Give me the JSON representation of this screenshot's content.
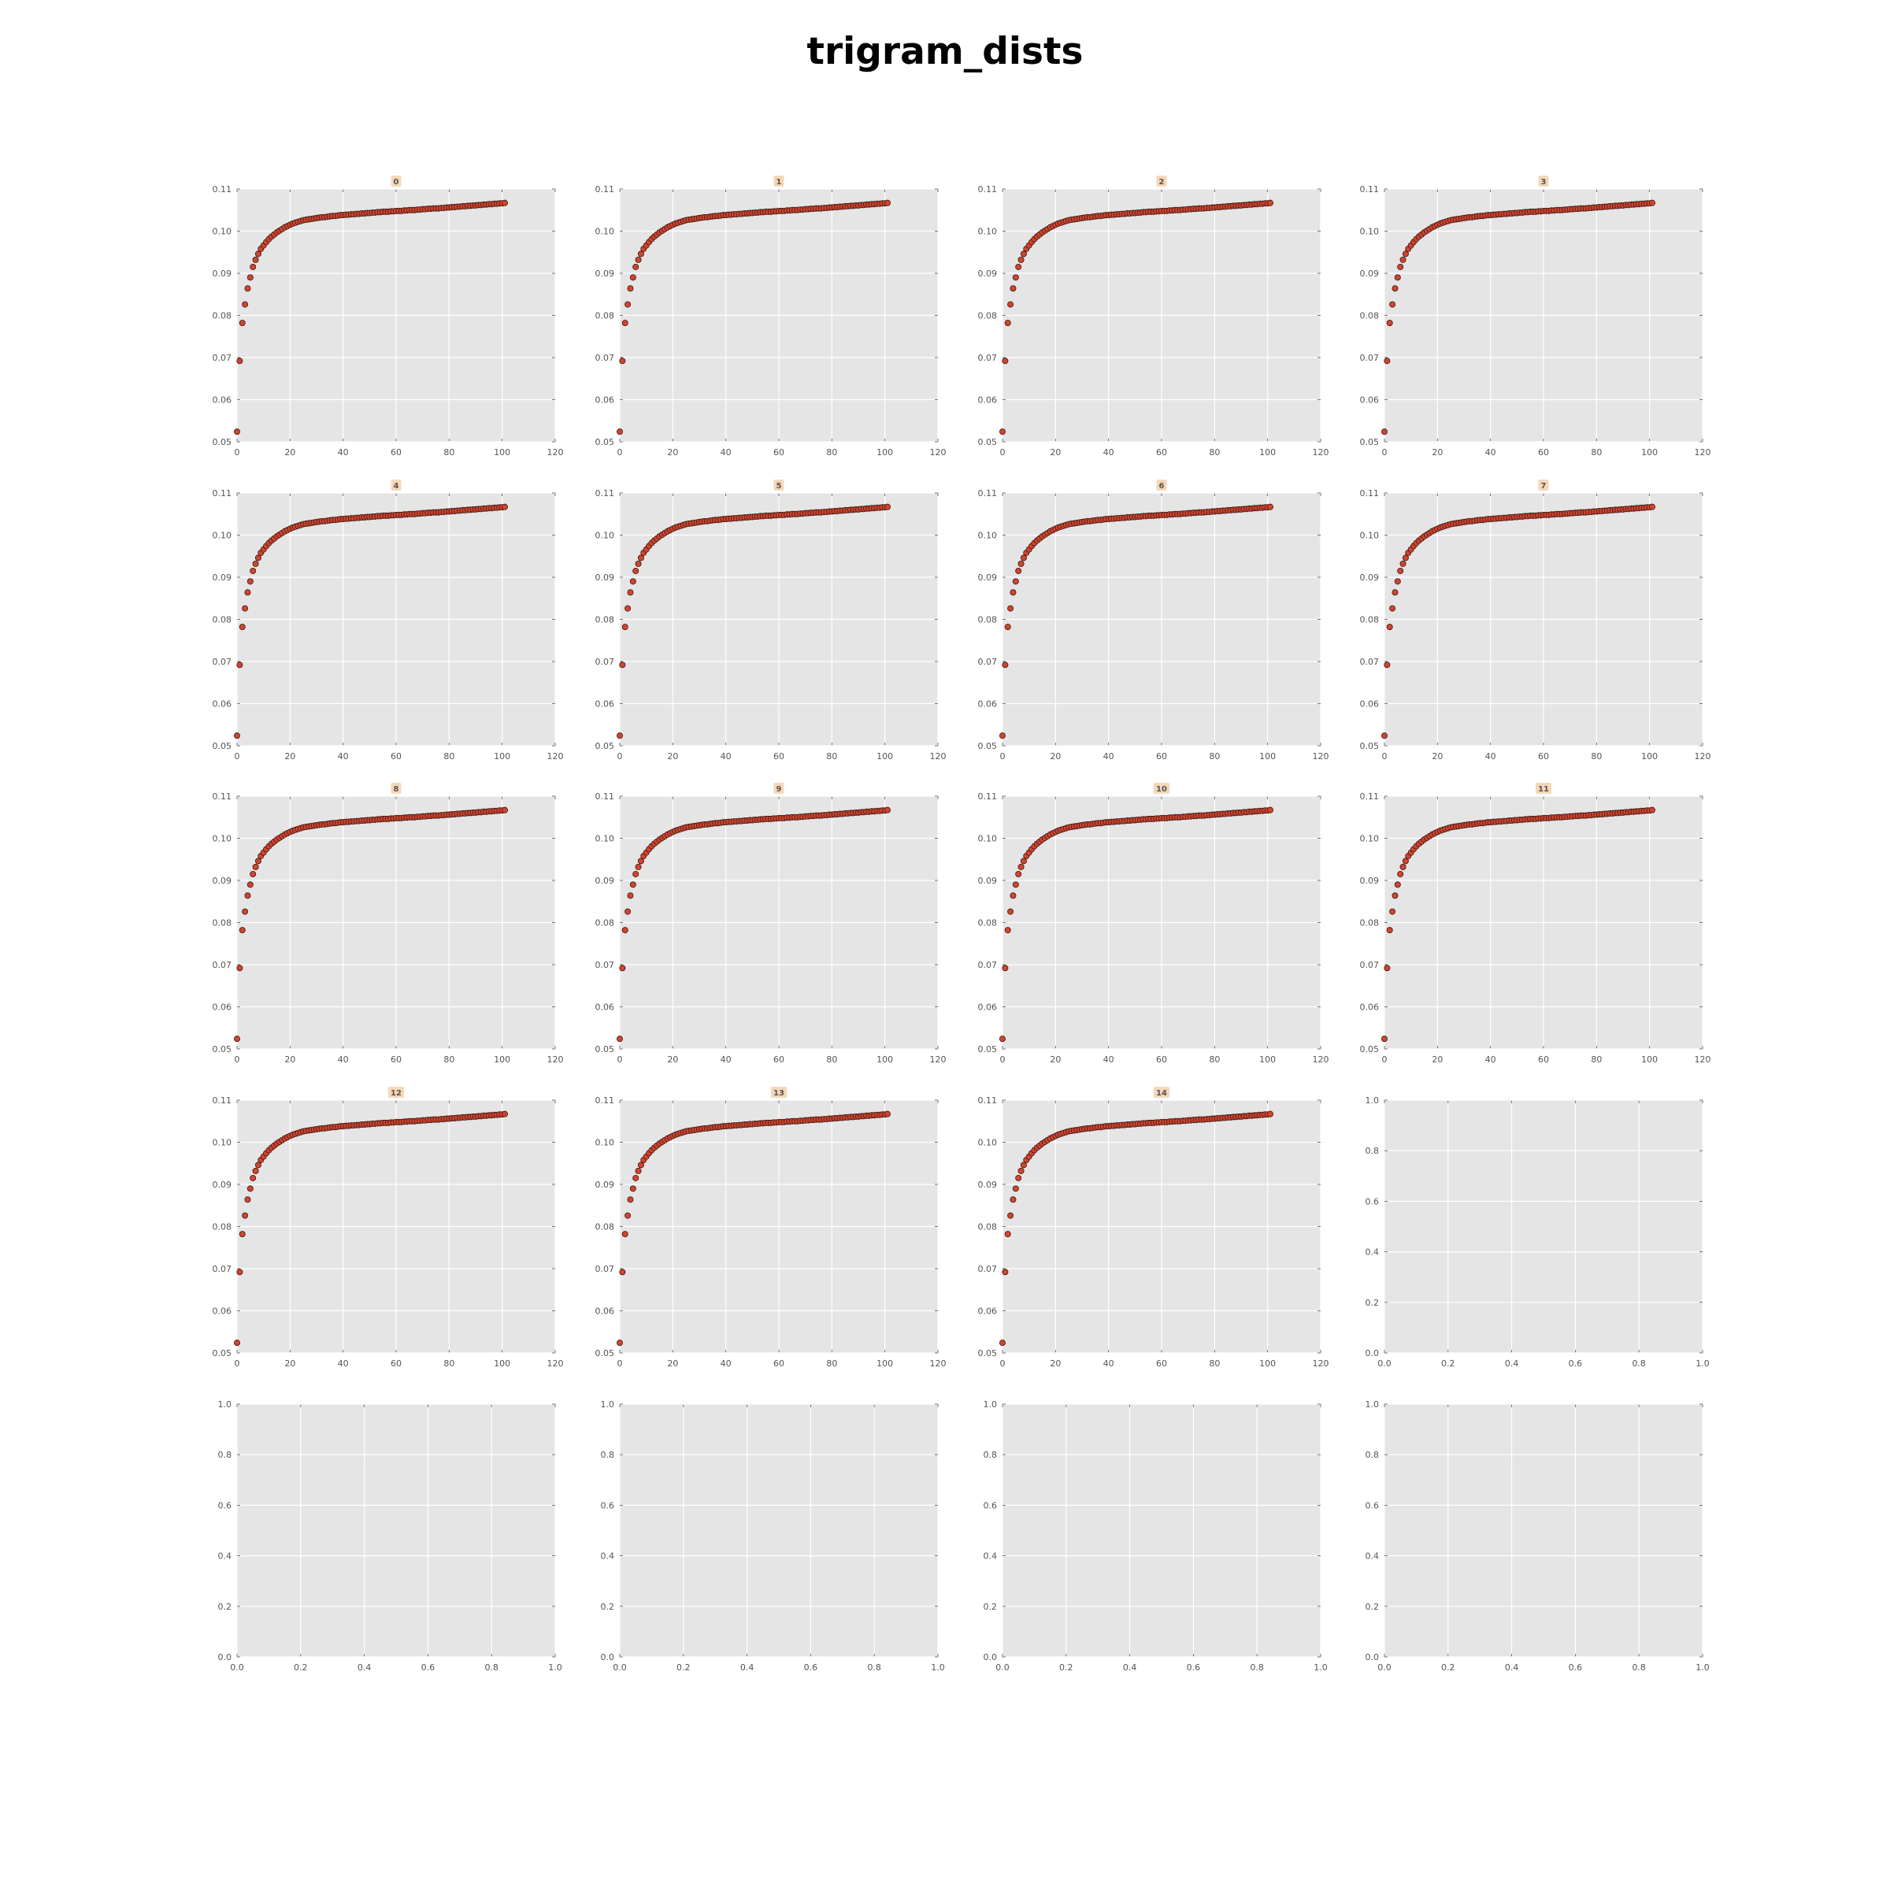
{
  "figure": {
    "title": "trigram_dists"
  },
  "style": {
    "panel_background": "#e5e5e5",
    "grid_color": "#ffffff",
    "marker_fill": "#d1442f",
    "marker_edge": "#3a1a14",
    "title_box_fill": "#f5d7b8",
    "tick_color": "#555555"
  },
  "chart_data": {
    "type": "scatter",
    "layout": {
      "rows": 5,
      "cols": 4
    },
    "shared_series": {
      "x": [
        0,
        1,
        2,
        3,
        4,
        5,
        6,
        7,
        8,
        9,
        10,
        11,
        12,
        13,
        14,
        15,
        16,
        17,
        18,
        19,
        20,
        21,
        22,
        23,
        24,
        25,
        26,
        27,
        28,
        29,
        30,
        31,
        32,
        33,
        34,
        35,
        36,
        37,
        38,
        39,
        40,
        41,
        42,
        43,
        44,
        45,
        46,
        47,
        48,
        49,
        50,
        51,
        52,
        53,
        54,
        55,
        56,
        57,
        58,
        59,
        60,
        61,
        62,
        63,
        64,
        65,
        66,
        67,
        68,
        69,
        70,
        71,
        72,
        73,
        74,
        75,
        76,
        77,
        78,
        79,
        80,
        81,
        82,
        83,
        84,
        85,
        86,
        87,
        88,
        89,
        90,
        91,
        92,
        93,
        94,
        95,
        96,
        97,
        98,
        99,
        100,
        101
      ],
      "y": [
        0.0524,
        0.0692,
        0.0782,
        0.0826,
        0.0864,
        0.089,
        0.0915,
        0.0932,
        0.0946,
        0.0958,
        0.0966,
        0.0974,
        0.0981,
        0.0987,
        0.0992,
        0.0997,
        0.1001,
        0.1005,
        0.1009,
        0.1012,
        0.1015,
        0.1018,
        0.102,
        0.1022,
        0.1024,
        0.1026,
        0.1027,
        0.1028,
        0.1029,
        0.103,
        0.1031,
        0.1032,
        0.1033,
        0.1033,
        0.1034,
        0.1035,
        0.1036,
        0.1036,
        0.1037,
        0.1038,
        0.1038,
        0.1039,
        0.1039,
        0.104,
        0.104,
        0.1041,
        0.1041,
        0.1042,
        0.1042,
        0.1043,
        0.1043,
        0.1044,
        0.1044,
        0.1045,
        0.1045,
        0.1046,
        0.1046,
        0.1046,
        0.1047,
        0.1047,
        0.1048,
        0.1048,
        0.1048,
        0.1049,
        0.1049,
        0.105,
        0.105,
        0.105,
        0.1051,
        0.1051,
        0.1052,
        0.1052,
        0.1053,
        0.1053,
        0.1054,
        0.1054,
        0.1054,
        0.1055,
        0.1055,
        0.1056,
        0.1056,
        0.1057,
        0.1057,
        0.1058,
        0.1058,
        0.1059,
        0.1059,
        0.106,
        0.106,
        0.1061,
        0.1061,
        0.1062,
        0.1062,
        0.1063,
        0.1063,
        0.1064,
        0.1064,
        0.1065,
        0.1065,
        0.1066,
        0.1066,
        0.1067
      ]
    },
    "data_panels": [
      {
        "title": "0",
        "xlim": [
          0,
          120
        ],
        "ylim": [
          0.05,
          0.11
        ]
      },
      {
        "title": "1",
        "xlim": [
          0,
          120
        ],
        "ylim": [
          0.05,
          0.11
        ]
      },
      {
        "title": "2",
        "xlim": [
          0,
          120
        ],
        "ylim": [
          0.05,
          0.11
        ]
      },
      {
        "title": "3",
        "xlim": [
          0,
          120
        ],
        "ylim": [
          0.05,
          0.11
        ]
      },
      {
        "title": "4",
        "xlim": [
          0,
          120
        ],
        "ylim": [
          0.05,
          0.11
        ]
      },
      {
        "title": "5",
        "xlim": [
          0,
          120
        ],
        "ylim": [
          0.05,
          0.11
        ]
      },
      {
        "title": "6",
        "xlim": [
          0,
          120
        ],
        "ylim": [
          0.05,
          0.11
        ]
      },
      {
        "title": "7",
        "xlim": [
          0,
          120
        ],
        "ylim": [
          0.05,
          0.11
        ]
      },
      {
        "title": "8",
        "xlim": [
          0,
          120
        ],
        "ylim": [
          0.05,
          0.11
        ]
      },
      {
        "title": "9",
        "xlim": [
          0,
          120
        ],
        "ylim": [
          0.05,
          0.11
        ]
      },
      {
        "title": "10",
        "xlim": [
          0,
          120
        ],
        "ylim": [
          0.05,
          0.11
        ]
      },
      {
        "title": "11",
        "xlim": [
          0,
          120
        ],
        "ylim": [
          0.05,
          0.11
        ]
      },
      {
        "title": "12",
        "xlim": [
          0,
          120
        ],
        "ylim": [
          0.05,
          0.11
        ]
      },
      {
        "title": "13",
        "xlim": [
          0,
          120
        ],
        "ylim": [
          0.05,
          0.11
        ]
      },
      {
        "title": "14",
        "xlim": [
          0,
          120
        ],
        "ylim": [
          0.05,
          0.11
        ]
      }
    ],
    "data_x_ticks": [
      "0",
      "20",
      "40",
      "60",
      "80",
      "100",
      "120"
    ],
    "data_y_ticks": [
      "0.05",
      "0.06",
      "0.07",
      "0.08",
      "0.09",
      "0.10",
      "0.11"
    ],
    "empty_panels": 5,
    "empty_x_ticks": [
      "0.0",
      "0.2",
      "0.4",
      "0.6",
      "0.8",
      "1.0"
    ],
    "empty_y_ticks": [
      "0.0",
      "0.2",
      "0.4",
      "0.6",
      "0.8",
      "1.0"
    ],
    "grid": true
  }
}
